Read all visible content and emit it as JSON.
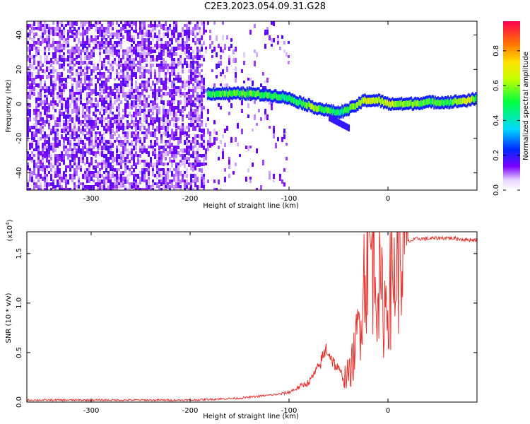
{
  "title": "C2E3.2023.054.09.31.G28",
  "chart_data": [
    {
      "type": "heatmap",
      "xlabel": "Height of straight line (km)",
      "ylabel": "Frequency (Hz)",
      "xlim": [
        -365,
        90
      ],
      "ylim": [
        -50,
        48
      ],
      "xticks": [
        -300,
        -200,
        -100,
        0
      ],
      "yticks": [
        -40,
        -20,
        0,
        20,
        40
      ],
      "colorbar": {
        "label": "Normalized spectral amplitude",
        "range": [
          0,
          0.97
        ],
        "ticks": [
          "0.0",
          "0.2",
          "0.4",
          "0.6",
          "0.8"
        ],
        "tick_values": [
          0.0,
          0.2,
          0.4,
          0.6,
          0.8
        ]
      },
      "noise_region_x": [
        -365,
        -100
      ],
      "signal_track": {
        "x": [
          -183,
          -160,
          -140,
          -120,
          -105,
          -90,
          -75,
          -60,
          -50,
          -40,
          -30,
          -25,
          -20,
          -10,
          0,
          20,
          40,
          60,
          80,
          88
        ],
        "freq": [
          6,
          6,
          6,
          5,
          4,
          1,
          -2,
          -4,
          -5,
          -3,
          0,
          2,
          2,
          2,
          0,
          0,
          1,
          1,
          2,
          3
        ],
        "amplitude": [
          0.55,
          0.6,
          0.65,
          0.55,
          0.5,
          0.55,
          0.7,
          0.55,
          0.5,
          0.6,
          0.7,
          0.75,
          0.8,
          0.7,
          0.75,
          0.65,
          0.6,
          0.55,
          0.8,
          0.6
        ]
      }
    },
    {
      "type": "line",
      "xlabel": "Height of straight line (km)",
      "ylabel": "SNR (10 * v/v)",
      "yscale_note": "(x10",
      "yscale_exp": "4",
      "yscale_close": ")",
      "xlim": [
        -365,
        90
      ],
      "ylim": [
        0,
        1.72
      ],
      "xticks": [
        -300,
        -200,
        -100,
        0
      ],
      "yticks": [
        "0.0",
        "0.5",
        "1.0",
        "1.5"
      ],
      "ytick_values": [
        0.0,
        0.5,
        1.0,
        1.5
      ],
      "color": "#e8312a",
      "series": [
        {
          "x": [
            -365,
            -300,
            -250,
            -200,
            -150,
            -130,
            -110,
            -100,
            -90,
            -80,
            -70,
            -62,
            -55,
            -45,
            -38,
            -32,
            -28,
            -25,
            -22,
            -18,
            -12,
            -8,
            -4,
            0,
            5,
            10,
            15,
            20,
            30,
            40,
            60,
            80,
            90
          ],
          "y": [
            0.02,
            0.02,
            0.02,
            0.02,
            0.04,
            0.06,
            0.08,
            0.1,
            0.15,
            0.2,
            0.35,
            0.55,
            0.4,
            0.25,
            0.3,
            0.6,
            0.9,
            1.2,
            1.45,
            1.55,
            1.35,
            1.1,
            0.95,
            1.05,
            1.25,
            1.4,
            1.55,
            1.62,
            1.65,
            1.65,
            1.66,
            1.64,
            1.64
          ]
        }
      ]
    }
  ]
}
